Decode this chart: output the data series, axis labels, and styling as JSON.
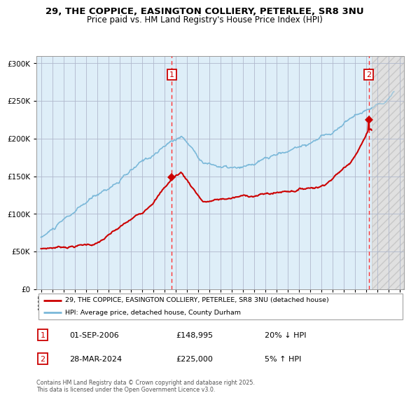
{
  "title1": "29, THE COPPICE, EASINGTON COLLIERY, PETERLEE, SR8 3NU",
  "title2": "Price paid vs. HM Land Registry's House Price Index (HPI)",
  "ylim": [
    0,
    310000
  ],
  "yticks": [
    0,
    50000,
    100000,
    150000,
    200000,
    250000,
    300000
  ],
  "ytick_labels": [
    "£0",
    "£50K",
    "£100K",
    "£150K",
    "£200K",
    "£250K",
    "£300K"
  ],
  "xlim_start": 1994.6,
  "xlim_end": 2027.4,
  "sale1_date": 2006.67,
  "sale1_price": 148995,
  "sale2_date": 2024.24,
  "sale2_price": 225000,
  "legend_label1": "29, THE COPPICE, EASINGTON COLLIERY, PETERLEE, SR8 3NU (detached house)",
  "legend_label2": "HPI: Average price, detached house, County Durham",
  "hpi_color": "#7ab8d9",
  "price_color": "#cc0000",
  "bg_color_main": "#deeef8",
  "grid_color": "#b0b8cc",
  "footnote": "Contains HM Land Registry data © Crown copyright and database right 2025.\nThis data is licensed under the Open Government Licence v3.0."
}
